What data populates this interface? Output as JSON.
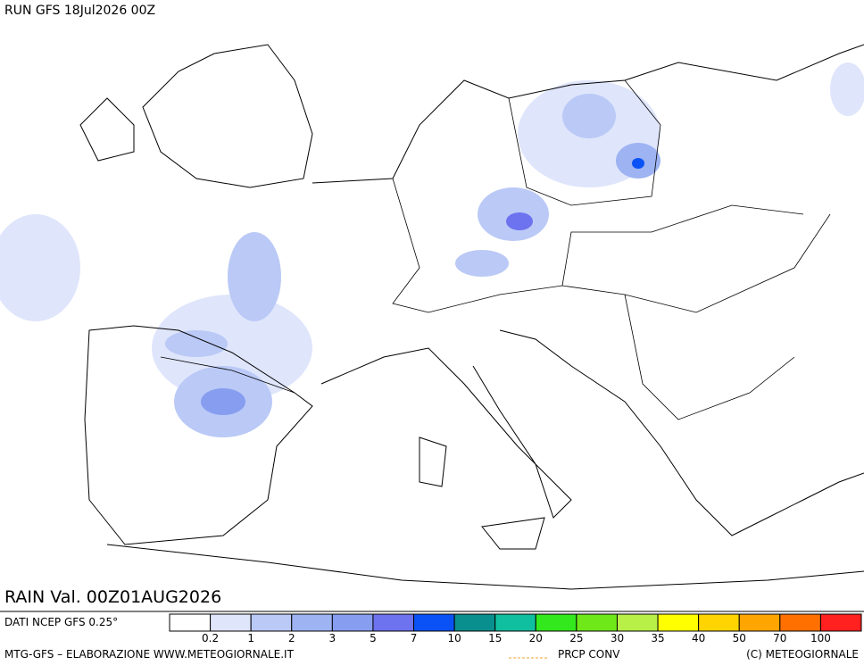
{
  "header": {
    "run": "RUN GFS 18Jul2026 00Z",
    "valid": "RAIN Val. 00Z01AUG2026"
  },
  "legend": {
    "source": "DATI NCEP GFS 0.25°",
    "colors": [
      "#ffffff",
      "#dfe5fb",
      "#bac9f6",
      "#9db3f2",
      "#869df0",
      "#6d72ef",
      "#0a52f5",
      "#0a8f8f",
      "#10bf9f",
      "#33e81c",
      "#6fe81a",
      "#b8f048",
      "#ffff00",
      "#ffd400",
      "#ffa500",
      "#ff7000",
      "#ff2020"
    ],
    "labels": [
      "0.2",
      "1",
      "2",
      "3",
      "5",
      "7",
      "10",
      "15",
      "20",
      "25",
      "30",
      "35",
      "40",
      "50",
      "70",
      "100"
    ]
  },
  "footer": {
    "credit": "MTG-GFS – ELABORAZIONE WWW.METEOGIORNALE.IT",
    "conv": "PRCP CONV",
    "copyright": "(C) METEOGIORNALE"
  }
}
